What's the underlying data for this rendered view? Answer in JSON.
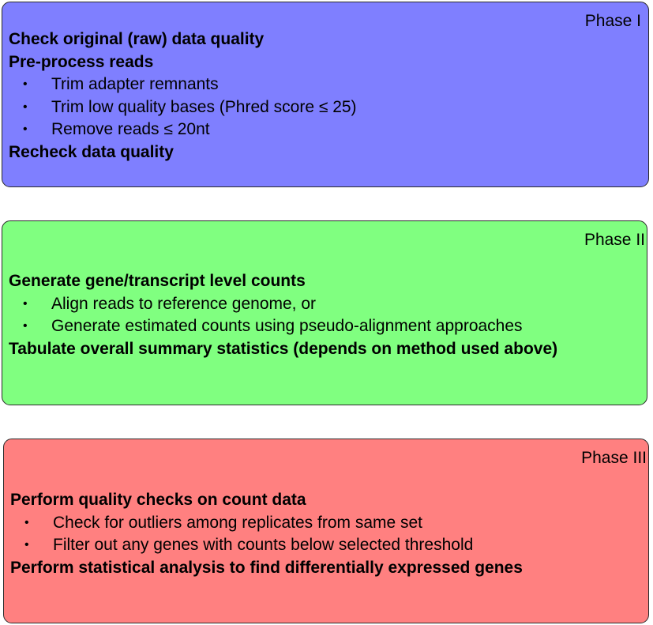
{
  "colors": {
    "phase1_fill": "#7f7fff",
    "phase2_fill": "#80ff80",
    "phase3_fill": "#ff8080",
    "border": "#2b2b2b"
  },
  "phases": [
    {
      "label": "Phase I",
      "lines": [
        {
          "type": "heading",
          "text": "Check original (raw) data quality"
        },
        {
          "type": "heading",
          "text": "Pre-process reads"
        },
        {
          "type": "bullet",
          "text": "Trim adapter remnants"
        },
        {
          "type": "bullet",
          "text": "Trim low quality bases (Phred score ≤ 25)"
        },
        {
          "type": "bullet",
          "text": "Remove reads ≤ 20nt"
        },
        {
          "type": "heading",
          "text": "Recheck data quality"
        }
      ]
    },
    {
      "label": "Phase II",
      "lines": [
        {
          "type": "heading",
          "text": "Generate gene/transcript level counts"
        },
        {
          "type": "bullet",
          "text": "Align reads to reference genome, or"
        },
        {
          "type": "bullet",
          "text": "Generate estimated counts using pseudo-alignment approaches"
        },
        {
          "type": "heading",
          "text": "Tabulate overall summary statistics (depends on method used above)"
        }
      ]
    },
    {
      "label": "Phase III",
      "lines": [
        {
          "type": "heading",
          "text": "Perform quality checks on count data"
        },
        {
          "type": "bullet",
          "text": "Check for outliers among replicates from same set"
        },
        {
          "type": "bullet",
          "text": "Filter out any genes with counts below selected threshold"
        },
        {
          "type": "heading",
          "text": "Perform statistical analysis to find differentially expressed genes"
        }
      ]
    }
  ]
}
